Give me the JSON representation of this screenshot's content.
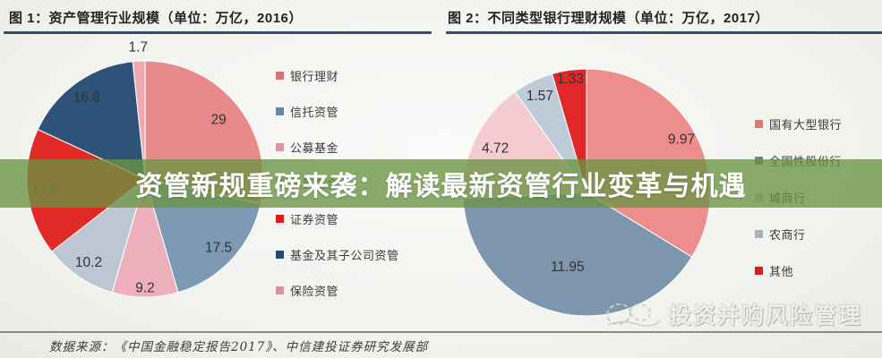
{
  "page": {
    "background_tint": "#f2f3ef",
    "accent_rule_color": "#2e4d72"
  },
  "headline": {
    "text": "资管新规重磅来袭：解读最新资管行业变革与机遇",
    "banner_color": "rgba(106,148,66,0.78)",
    "text_color": "#ffffff"
  },
  "watermark": {
    "text": "投资并购风险管理"
  },
  "footer": {
    "source_text": "数据来源：《中国金融稳定报告2017》、中信建投证券研究发展部"
  },
  "chart_data": [
    {
      "type": "pie",
      "title": "图 1：资产管理行业规模（单位：万亿，2016）",
      "unit": "万亿",
      "year": "2016",
      "legend_position": "right",
      "slices": [
        {
          "label": "银行理财",
          "value": 29,
          "color": "#e8898b",
          "label_r": 0.8
        },
        {
          "label": "信托资管",
          "value": 17.5,
          "color": "#7e99b4",
          "label_r": 0.85
        },
        {
          "label": "公募基金",
          "value": 9.2,
          "color": "#eeafbc",
          "label_r": 0.92
        },
        {
          "label": "私募基金",
          "value": 10.2,
          "color": "#bcc7d3",
          "label_r": 0.85
        },
        {
          "label": "证券资管",
          "value": 17.8,
          "color": "#e12a28",
          "label_r": 0.85
        },
        {
          "label": "基金及其子公司资管",
          "value": 16.8,
          "color": "#2f5378",
          "label_r": 0.85
        },
        {
          "label": "保险资管",
          "value": 1.7,
          "color": "#efa9b3",
          "label_r": 1.12
        }
      ]
    },
    {
      "type": "pie",
      "title": "图 2：不同类型银行理财规模（单位：万亿，2017）",
      "unit": "万亿",
      "year": "2017",
      "legend_position": "right",
      "slices": [
        {
          "label": "国有大型银行",
          "value": 9.97,
          "color": "#ed8d8e",
          "label_r": 0.88
        },
        {
          "label": "全国性股份行",
          "value": 11.95,
          "color": "#7e96ad",
          "label_r": 0.62
        },
        {
          "label": "城商行",
          "value": 4.72,
          "color": "#f3cbd1",
          "label_r": 0.82
        },
        {
          "label": "农商行",
          "value": 1.57,
          "color": "#becbd8",
          "label_r": 0.87
        },
        {
          "label": "其他",
          "value": 1.33,
          "color": "#e0282a",
          "label_r": 0.93
        }
      ]
    }
  ]
}
